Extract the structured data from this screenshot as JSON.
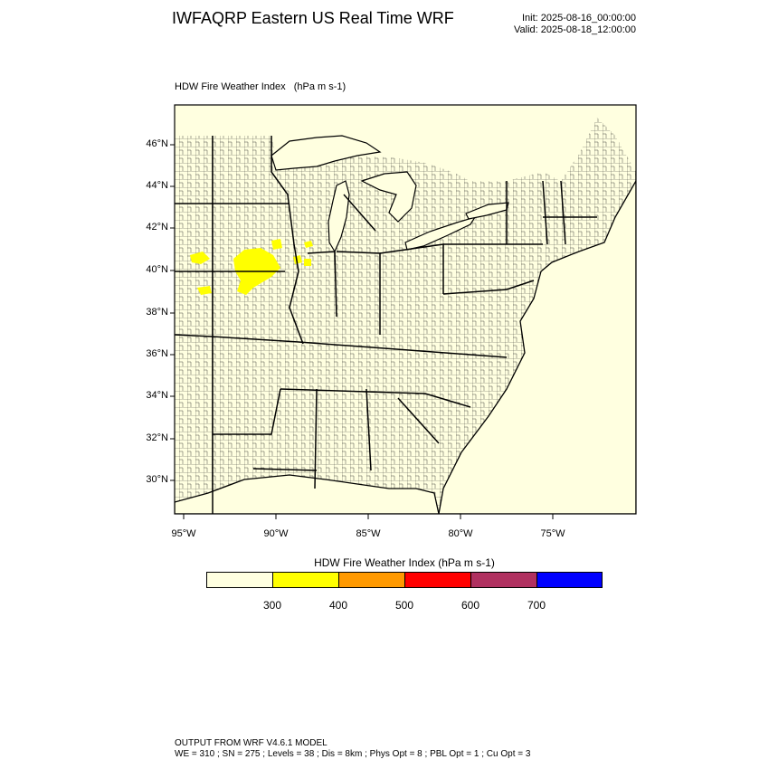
{
  "header": {
    "title": "IWFAQRP Eastern US Real Time WRF",
    "init_time": "Init: 2025-08-16_00:00:00",
    "valid_time": "Valid: 2025-08-18_12:00:00"
  },
  "field": {
    "name": "HDW Fire Weather Index",
    "units": "(hPa m s-1)"
  },
  "map": {
    "background_color": "#ffffe0",
    "lat_labels": [
      "46°N",
      "44°N",
      "42°N",
      "40°N",
      "38°N",
      "36°N",
      "34°N",
      "32°N",
      "30°N"
    ],
    "lon_labels": [
      "95°W",
      "90°W",
      "85°W",
      "80°W",
      "75°W"
    ],
    "highlight_region": "Iowa / northern Missouri / northern Illinois",
    "highlight_color": "#ffff00"
  },
  "colorbar": {
    "title": "HDW Fire Weather Index (hPa m s-1)",
    "colors": [
      "#ffffe0",
      "#ffff00",
      "#ff9900",
      "#ff0000",
      "#b03060",
      "#0000ff"
    ],
    "tick_labels": [
      "300",
      "400",
      "500",
      "600",
      "700"
    ]
  },
  "footer": {
    "line1": "OUTPUT FROM WRF V4.6.1 MODEL",
    "line2": "WE = 310 ; SN = 275 ; Levels = 38 ; Dis = 8km ; Phys Opt = 8 ; PBL Opt = 1 ; Cu Opt = 3"
  }
}
